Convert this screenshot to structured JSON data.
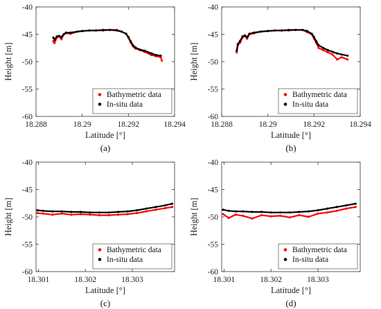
{
  "chart_data": [
    {
      "type": "line",
      "panel_label": "(a)",
      "xlabel": "Latitude [°]",
      "ylabel": "Height [m]",
      "xlim": [
        18.288,
        18.294
      ],
      "ylim": [
        -60,
        -40
      ],
      "xticks": [
        "18.288",
        "18.29",
        "18.292",
        "18.294"
      ],
      "xtick_values": [
        18.288,
        18.29,
        18.292,
        18.294
      ],
      "yticks": [
        "-40",
        "-45",
        "-50",
        "-55",
        "-60"
      ],
      "ytick_values": [
        -40,
        -45,
        -50,
        -55,
        -60
      ],
      "grid": false,
      "legend": "bottom-right",
      "series": [
        {
          "name": "Bathymetric data",
          "color": "#ff0000",
          "x": [
            18.28875,
            18.2888,
            18.2889,
            18.289,
            18.2891,
            18.2892,
            18.2893,
            18.2895,
            18.2898,
            18.29,
            18.2903,
            18.2906,
            18.2909,
            18.2912,
            18.2915,
            18.2917,
            18.2919,
            18.292,
            18.2921,
            18.2922,
            18.2923,
            18.2925,
            18.2927,
            18.293,
            18.2932,
            18.2934,
            18.29345
          ],
          "y": [
            -46.3,
            -46.6,
            -45.6,
            -45.4,
            -45.9,
            -45.0,
            -44.8,
            -44.9,
            -44.5,
            -44.4,
            -44.3,
            -44.3,
            -44.3,
            -44.2,
            -44.2,
            -44.5,
            -44.9,
            -45.6,
            -46.5,
            -47.2,
            -47.6,
            -47.9,
            -48.2,
            -48.8,
            -49.0,
            -49.2,
            -49.8
          ]
        },
        {
          "name": "In-situ data",
          "color": "#000000",
          "x": [
            18.28875,
            18.2888,
            18.2889,
            18.289,
            18.2891,
            18.2892,
            18.2893,
            18.2895,
            18.2898,
            18.29,
            18.2903,
            18.2906,
            18.2909,
            18.2912,
            18.2915,
            18.2917,
            18.2919,
            18.292,
            18.2921,
            18.2922,
            18.2923,
            18.2925,
            18.2927,
            18.293,
            18.2932,
            18.2934
          ],
          "y": [
            -45.6,
            -46.0,
            -45.4,
            -45.3,
            -45.5,
            -45.0,
            -44.7,
            -44.7,
            -44.5,
            -44.4,
            -44.3,
            -44.3,
            -44.2,
            -44.2,
            -44.3,
            -44.5,
            -44.9,
            -45.5,
            -46.3,
            -47.0,
            -47.4,
            -47.8,
            -48.0,
            -48.5,
            -48.8,
            -48.9
          ]
        }
      ]
    },
    {
      "type": "line",
      "panel_label": "(b)",
      "xlabel": "Latitude [°]",
      "ylabel": "Height [m]",
      "xlim": [
        18.288,
        18.294
      ],
      "ylim": [
        -60,
        -40
      ],
      "xticks": [
        "18.288",
        "18.29",
        "18.292",
        "18.294"
      ],
      "xtick_values": [
        18.288,
        18.29,
        18.292,
        18.294
      ],
      "yticks": [
        "-40",
        "-45",
        "-50",
        "-55",
        "-60"
      ],
      "ytick_values": [
        -40,
        -45,
        -50,
        -55,
        -60
      ],
      "grid": false,
      "legend": "bottom-right",
      "series": [
        {
          "name": "Bathymetric data",
          "color": "#ff0000",
          "x": [
            18.28865,
            18.2887,
            18.2888,
            18.2889,
            18.289,
            18.2891,
            18.2892,
            18.2894,
            18.2897,
            18.29,
            18.2903,
            18.2906,
            18.2909,
            18.2912,
            18.2915,
            18.2917,
            18.2919,
            18.292,
            18.2921,
            18.2922,
            18.2924,
            18.2926,
            18.2928,
            18.293,
            18.2932,
            18.29345
          ],
          "y": [
            -48.3,
            -47.0,
            -46.5,
            -45.6,
            -45.3,
            -45.8,
            -45.0,
            -44.8,
            -44.5,
            -44.4,
            -44.3,
            -44.3,
            -44.3,
            -44.2,
            -44.2,
            -44.6,
            -45.0,
            -45.8,
            -46.6,
            -47.5,
            -47.9,
            -48.3,
            -48.7,
            -49.6,
            -49.2,
            -49.6
          ]
        },
        {
          "name": "In-situ data",
          "color": "#000000",
          "x": [
            18.28865,
            18.2887,
            18.2888,
            18.2889,
            18.289,
            18.2891,
            18.2892,
            18.2894,
            18.2897,
            18.29,
            18.2903,
            18.2906,
            18.2909,
            18.2912,
            18.2915,
            18.2917,
            18.2919,
            18.292,
            18.2921,
            18.2922,
            18.2924,
            18.2926,
            18.2928,
            18.293,
            18.2932,
            18.29345
          ],
          "y": [
            -48.0,
            -46.8,
            -46.2,
            -45.4,
            -45.2,
            -45.5,
            -44.9,
            -44.7,
            -44.5,
            -44.4,
            -44.3,
            -44.3,
            -44.2,
            -44.2,
            -44.2,
            -44.4,
            -44.9,
            -45.5,
            -46.3,
            -47.0,
            -47.5,
            -47.9,
            -48.2,
            -48.5,
            -48.7,
            -48.9
          ]
        }
      ]
    },
    {
      "type": "line",
      "panel_label": "(c)",
      "xlabel": "Latitude [°]",
      "ylabel": "Height [m]",
      "xlim": [
        18.30095,
        18.3039
      ],
      "ylim": [
        -60,
        -40
      ],
      "xticks": [
        "18.301",
        "18.302",
        "18.303"
      ],
      "xtick_values": [
        18.301,
        18.302,
        18.303
      ],
      "yticks": [
        "-40",
        "-45",
        "-50",
        "-55",
        "-60"
      ],
      "ytick_values": [
        -40,
        -45,
        -50,
        -55,
        -60
      ],
      "grid": false,
      "legend": "bottom-right",
      "series": [
        {
          "name": "Bathymetric data",
          "color": "#ff0000",
          "x": [
            18.30098,
            18.3011,
            18.3013,
            18.3015,
            18.3017,
            18.3019,
            18.3021,
            18.3023,
            18.3025,
            18.3027,
            18.3029,
            18.3031,
            18.3033,
            18.3035,
            18.3037,
            18.30385
          ],
          "y": [
            -49.3,
            -49.4,
            -49.6,
            -49.4,
            -49.6,
            -49.5,
            -49.6,
            -49.7,
            -49.7,
            -49.6,
            -49.5,
            -49.3,
            -49.0,
            -48.7,
            -48.4,
            -48.2
          ]
        },
        {
          "name": "In-situ data",
          "color": "#000000",
          "x": [
            18.30098,
            18.3011,
            18.3013,
            18.3015,
            18.3017,
            18.3019,
            18.3021,
            18.3023,
            18.3025,
            18.3027,
            18.3029,
            18.3031,
            18.3033,
            18.3035,
            18.3037,
            18.30385
          ],
          "y": [
            -48.8,
            -48.9,
            -49.0,
            -49.0,
            -49.1,
            -49.1,
            -49.2,
            -49.2,
            -49.2,
            -49.1,
            -49.0,
            -48.8,
            -48.5,
            -48.2,
            -47.9,
            -47.6
          ]
        }
      ]
    },
    {
      "type": "line",
      "panel_label": "(d)",
      "xlabel": "Latitude [°]",
      "ylabel": "Height [m]",
      "xlim": [
        18.30095,
        18.3039
      ],
      "ylim": [
        -60,
        -40
      ],
      "xticks": [
        "18.301",
        "18.302",
        "18.303"
      ],
      "xtick_values": [
        18.301,
        18.302,
        18.303
      ],
      "yticks": [
        "-40",
        "-45",
        "-50",
        "-55",
        "-60"
      ],
      "ytick_values": [
        -40,
        -45,
        -50,
        -55,
        -60
      ],
      "grid": false,
      "legend": "bottom-right",
      "series": [
        {
          "name": "Bathymetric data",
          "color": "#ff0000",
          "x": [
            18.30098,
            18.3011,
            18.30125,
            18.3014,
            18.3016,
            18.3018,
            18.302,
            18.3022,
            18.3024,
            18.3026,
            18.3028,
            18.303,
            18.3032,
            18.3034,
            18.3036,
            18.3038
          ],
          "y": [
            -49.5,
            -50.2,
            -49.6,
            -49.8,
            -50.3,
            -49.7,
            -49.9,
            -49.8,
            -50.1,
            -49.7,
            -50.0,
            -49.4,
            -49.2,
            -48.9,
            -48.5,
            -48.2
          ]
        },
        {
          "name": "In-situ data",
          "color": "#000000",
          "x": [
            18.30098,
            18.3011,
            18.30125,
            18.3014,
            18.3016,
            18.3018,
            18.302,
            18.3022,
            18.3024,
            18.3026,
            18.3028,
            18.303,
            18.3032,
            18.3034,
            18.3036,
            18.3038
          ],
          "y": [
            -48.7,
            -48.9,
            -49.0,
            -49.0,
            -49.1,
            -49.1,
            -49.2,
            -49.2,
            -49.2,
            -49.1,
            -49.0,
            -48.8,
            -48.5,
            -48.2,
            -47.9,
            -47.6
          ]
        }
      ]
    }
  ]
}
